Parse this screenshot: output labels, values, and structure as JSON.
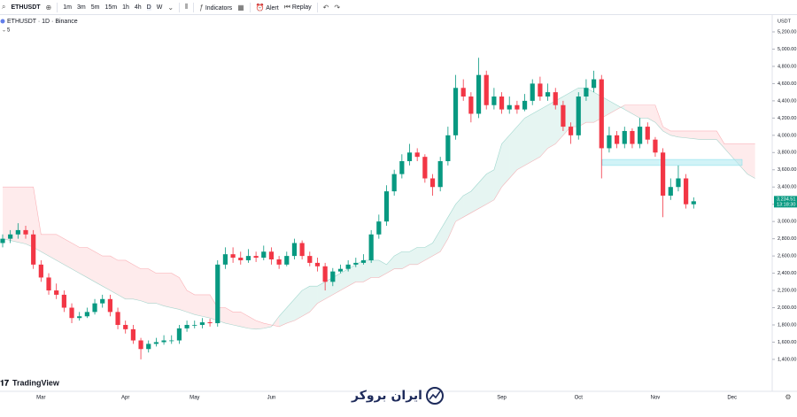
{
  "toolbar": {
    "symbol": "ETHUSDT",
    "intervals": [
      "1m",
      "3m",
      "5m",
      "15m",
      "1h",
      "4h",
      "D",
      "W"
    ],
    "indicators": "Indicators",
    "alert": "Alert",
    "replay": "Replay"
  },
  "legend": {
    "title": "ETHUSDT · 1D · Binance",
    "value": "5"
  },
  "branding": "TradingView",
  "watermark": "ایران بروکر",
  "chart_data": {
    "type": "candlestick",
    "y_axis_label": "USDT",
    "categories": [
      null,
      null,
      null,
      null,
      null,
      "Mar",
      null,
      null,
      null,
      null,
      null,
      null,
      null,
      null,
      null,
      null,
      "Apr",
      null,
      null,
      null,
      null,
      null,
      null,
      null,
      null,
      "May",
      null,
      null,
      null,
      null,
      null,
      null,
      null,
      null,
      null,
      "Jun",
      null,
      null,
      null,
      null,
      null,
      null,
      null,
      null,
      null,
      null,
      null,
      null,
      null,
      null,
      null,
      null,
      null,
      null,
      null,
      null,
      null,
      null,
      null,
      null,
      null,
      null,
      null,
      null,
      null,
      "Sep",
      null,
      null,
      null,
      null,
      null,
      null,
      null,
      null,
      null,
      "Oct",
      null,
      null,
      null,
      null,
      null,
      null,
      null,
      null,
      null,
      "Nov",
      null,
      null,
      null,
      null,
      null,
      null,
      null,
      null,
      null,
      "Dec",
      null,
      null,
      null
    ],
    "open": [
      2750,
      2800,
      2850,
      2900,
      2850,
      2500,
      2350,
      2200,
      2150,
      2000,
      1880,
      1900,
      1950,
      2050,
      2100,
      1950,
      1800,
      1750,
      1620,
      1520,
      1580,
      1600,
      1620,
      1620,
      1760,
      1800,
      1800,
      1830,
      1820,
      2500,
      2620,
      2580,
      2550,
      2600,
      2580,
      2650,
      2560,
      2500,
      2600,
      2750,
      2600,
      2520,
      2480,
      2300,
      2420,
      2450,
      2500,
      2520,
      2550,
      2850,
      3000,
      3350,
      3550,
      3700,
      3800,
      3750,
      3500,
      3400,
      3700,
      4000,
      4550,
      4450,
      4250,
      4700,
      4350,
      4450,
      4300,
      4350,
      4300,
      4400,
      4600,
      4450,
      4500,
      4350,
      4100,
      4000,
      4450,
      4550,
      4650,
      3850,
      4000,
      3900,
      4050,
      3900,
      4100,
      3950,
      3800,
      3300,
      3400,
      3500,
      3200,
      null,
      null,
      null,
      null,
      null,
      null,
      null,
      null
    ],
    "high": [
      2850,
      2900,
      2980,
      2950,
      2900,
      2550,
      2400,
      2280,
      2200,
      2050,
      1950,
      2000,
      2100,
      2150,
      2150,
      2000,
      1850,
      1800,
      1650,
      1620,
      1650,
      1680,
      1680,
      1800,
      1850,
      1850,
      1880,
      1870,
      2550,
      2700,
      2700,
      2650,
      2680,
      2650,
      2720,
      2700,
      2600,
      2650,
      2800,
      2780,
      2650,
      2580,
      2520,
      2460,
      2500,
      2550,
      2580,
      2620,
      2900,
      3080,
      3420,
      3600,
      3780,
      3900,
      3850,
      3780,
      3550,
      3750,
      4100,
      4700,
      4650,
      4500,
      4900,
      4750,
      4550,
      4500,
      4450,
      4400,
      4480,
      4650,
      4680,
      4600,
      4550,
      4400,
      4150,
      4500,
      4650,
      4750,
      4700,
      4100,
      4050,
      4100,
      4080,
      4200,
      4150,
      3980,
      3850,
      3500,
      3650,
      3550,
      3280,
      null,
      null,
      null,
      null,
      null,
      null,
      null,
      null
    ],
    "low": [
      2700,
      2750,
      2800,
      2800,
      2450,
      2300,
      2150,
      2100,
      1950,
      1820,
      1850,
      1880,
      1920,
      2000,
      1900,
      1750,
      1700,
      1580,
      1400,
      1480,
      1550,
      1570,
      1580,
      1580,
      1720,
      1760,
      1760,
      1780,
      1780,
      2450,
      2520,
      2500,
      2520,
      2530,
      2550,
      2500,
      2450,
      2480,
      2560,
      2560,
      2480,
      2420,
      2200,
      2250,
      2400,
      2420,
      2470,
      2500,
      2520,
      2800,
      2950,
      3300,
      3500,
      3650,
      3700,
      3450,
      3300,
      3350,
      3650,
      3950,
      4400,
      4150,
      4200,
      4300,
      4300,
      4250,
      4250,
      4250,
      4280,
      4350,
      4400,
      4400,
      4300,
      4050,
      3900,
      3950,
      4400,
      4500,
      3500,
      3800,
      3850,
      3850,
      3850,
      3850,
      3900,
      3750,
      3050,
      3250,
      3350,
      3150,
      3150,
      null,
      null,
      null,
      null,
      null,
      null,
      null,
      null
    ],
    "close": [
      2800,
      2850,
      2900,
      2850,
      2500,
      2350,
      2200,
      2150,
      2000,
      1880,
      1900,
      1950,
      2050,
      2100,
      1950,
      1800,
      1750,
      1620,
      1520,
      1580,
      1600,
      1620,
      1620,
      1760,
      1800,
      1800,
      1830,
      1820,
      2500,
      2620,
      2580,
      2550,
      2600,
      2580,
      2650,
      2560,
      2500,
      2600,
      2750,
      2600,
      2520,
      2480,
      2300,
      2420,
      2450,
      2500,
      2520,
      2550,
      2850,
      3000,
      3350,
      3550,
      3700,
      3800,
      3750,
      3500,
      3400,
      3700,
      4000,
      4550,
      4450,
      4250,
      4700,
      4350,
      4450,
      4300,
      4350,
      4300,
      4400,
      4600,
      4450,
      4500,
      4350,
      4100,
      4000,
      4450,
      4550,
      4650,
      3850,
      4000,
      3900,
      4050,
      3900,
      4100,
      3950,
      3800,
      3300,
      3400,
      3500,
      3200,
      3234.51,
      null,
      null,
      null,
      null,
      null,
      null,
      null,
      null
    ],
    "span_a": [
      2800,
      2780,
      2760,
      2740,
      2700,
      2650,
      2600,
      2550,
      2500,
      2450,
      2400,
      2350,
      2300,
      2250,
      2200,
      2150,
      2100,
      2100,
      2080,
      2050,
      2050,
      2020,
      2000,
      1980,
      1950,
      1920,
      1900,
      1880,
      1850,
      1820,
      1800,
      1780,
      1760,
      1750,
      1760,
      1780,
      1900,
      2000,
      2100,
      2200,
      2250,
      2250,
      2300,
      2350,
      2400,
      2450,
      2500,
      2550,
      2550,
      2550,
      2500,
      2600,
      2650,
      2650,
      2700,
      2700,
      2750,
      2900,
      3050,
      3200,
      3300,
      3350,
      3450,
      3550,
      3600,
      3900,
      4000,
      4100,
      4200,
      4250,
      4300,
      4350,
      4400,
      4450,
      4500,
      4550,
      4550,
      4500,
      4450,
      4400,
      4350,
      4300,
      4250,
      4200,
      4200,
      4150,
      4050,
      4000,
      3980,
      3970,
      3960,
      3950,
      3950,
      3950,
      3850,
      3750,
      3650,
      3550,
      3500
    ],
    "span_b": [
      3400,
      3400,
      3400,
      3400,
      3400,
      2850,
      2850,
      2850,
      2800,
      2750,
      2700,
      2700,
      2650,
      2600,
      2600,
      2550,
      2550,
      2500,
      2450,
      2450,
      2400,
      2400,
      2400,
      2350,
      2200,
      2150,
      2150,
      2150,
      2000,
      2000,
      1950,
      1950,
      1900,
      1850,
      1820,
      1800,
      1780,
      1820,
      1850,
      1900,
      1950,
      2050,
      2100,
      2150,
      2200,
      2250,
      2300,
      2300,
      2350,
      2350,
      2400,
      2450,
      2450,
      2500,
      2500,
      2550,
      2600,
      2650,
      2800,
      3000,
      3050,
      3100,
      3150,
      3200,
      3250,
      3400,
      3500,
      3600,
      3650,
      3700,
      3750,
      3850,
      3900,
      4000,
      4100,
      4100,
      4150,
      4150,
      4200,
      4250,
      4300,
      4350,
      4350,
      4350,
      4350,
      4350,
      4100,
      4050,
      4050,
      4050,
      4050,
      4050,
      4050,
      4050,
      3900,
      3900,
      3900,
      3900,
      3900
    ],
    "up_color": "#089981",
    "down_color": "#f23645",
    "cloud_up_color": "#089981",
    "cloud_down_color": "#f23645",
    "zone": {
      "low": 3650,
      "high": 3720,
      "color": "#b2ebf2"
    },
    "last_price": {
      "label": "3,234.51",
      "countdown": "13:18:30"
    },
    "ylim": [
      1050,
      5385
    ],
    "yticks": [
      {
        "value": 1400,
        "label": "1,400.00"
      },
      {
        "value": 1600,
        "label": "1,600.00"
      },
      {
        "value": 1800,
        "label": "1,800.00"
      },
      {
        "value": 2000,
        "label": "2,000.00"
      },
      {
        "value": 2200,
        "label": "2,200.00"
      },
      {
        "value": 2400,
        "label": "2,400.00"
      },
      {
        "value": 2600,
        "label": "2,600.00"
      },
      {
        "value": 2800,
        "label": "2,800.00"
      },
      {
        "value": 3000,
        "label": "3,000.00"
      },
      {
        "value": 3200,
        "label": "3,200.00"
      },
      {
        "value": 3400,
        "label": "3,400.00"
      },
      {
        "value": 3600,
        "label": "3,600.00"
      },
      {
        "value": 3800,
        "label": "3,800.00"
      },
      {
        "value": 4000,
        "label": "4,000.00"
      },
      {
        "value": 4200,
        "label": "4,200.00"
      },
      {
        "value": 4400,
        "label": "4,400.00"
      },
      {
        "value": 4600,
        "label": "4,600.00"
      },
      {
        "value": 4800,
        "label": "4,800.00"
      },
      {
        "value": 5000,
        "label": "5,000.00"
      },
      {
        "value": 5200,
        "label": "5,200.00"
      }
    ],
    "grid": false
  }
}
